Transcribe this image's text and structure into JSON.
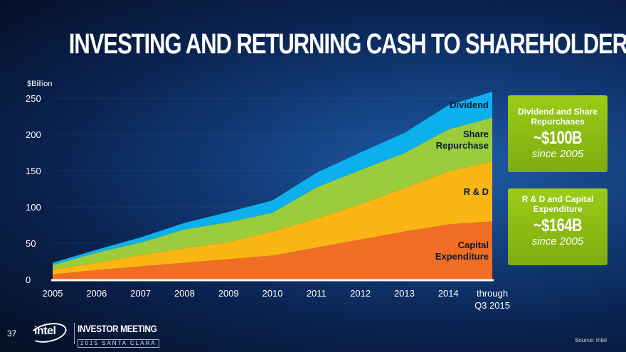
{
  "title": "INVESTING AND RETURNING CASH TO SHAREHOLDERS",
  "chart_data": {
    "type": "area",
    "stacked": true,
    "ylabel": "$Billion",
    "ylim": [
      0,
      250
    ],
    "yticks": [
      "0",
      "50",
      "100",
      "150",
      "200",
      "250"
    ],
    "categories": [
      "2005",
      "2006",
      "2007",
      "2008",
      "2009",
      "2010",
      "2011",
      "2012",
      "2013",
      "2014",
      "through Q3 2015"
    ],
    "category_lines": [
      [
        "2005"
      ],
      [
        "2006"
      ],
      [
        "2007"
      ],
      [
        "2008"
      ],
      [
        "2009"
      ],
      [
        "2010"
      ],
      [
        "2011"
      ],
      [
        "2012"
      ],
      [
        "2013"
      ],
      [
        "2014"
      ],
      [
        "through",
        "Q3 2015"
      ]
    ],
    "series": [
      {
        "name": "Capital Expenditure",
        "name_lines": [
          "Capital",
          "Expenditure"
        ],
        "color": "#f06d23",
        "values": [
          7,
          13,
          18,
          23,
          28,
          33,
          44,
          55,
          66,
          76,
          80
        ]
      },
      {
        "name": "R & D",
        "name_lines": [
          "R & D"
        ],
        "color": "#fbb614",
        "values": [
          7,
          10,
          16,
          20,
          24,
          33,
          40,
          49,
          60,
          73,
          83
        ]
      },
      {
        "name": "Share Repurchase",
        "name_lines": [
          "Share",
          "Repurchase"
        ],
        "color": "#9bcc3b",
        "values": [
          6,
          14,
          17,
          26,
          27,
          26,
          43,
          47,
          48,
          58,
          60
        ]
      },
      {
        "name": "Dividend",
        "name_lines": [
          "Dividend"
        ],
        "color": "#0db0ee",
        "values": [
          3,
          4,
          7,
          9,
          14,
          17,
          20,
          24,
          28,
          33,
          36
        ]
      }
    ],
    "grid": false,
    "legend": "inline labels on the right"
  },
  "callouts": [
    {
      "heading": "Dividend and Share Repurchases",
      "amount": "~$100B",
      "since": "since 2005"
    },
    {
      "heading": "R & D and Capital Expenditure",
      "amount": "~$164B",
      "since": "since 2005"
    }
  ],
  "footer": {
    "page_number": "37",
    "logo_text": "intel",
    "event_title": "INVESTOR MEETING",
    "event_subtitle": "2015 SANTA CLARA",
    "source": "Source: Intel"
  }
}
